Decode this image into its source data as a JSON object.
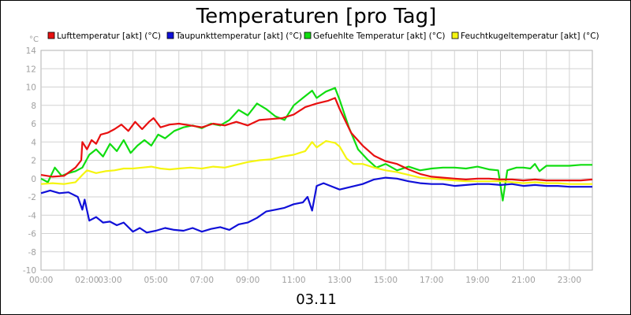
{
  "chart_data": {
    "type": "line",
    "title": "Temperaturen [pro Tag]",
    "y_unit": "°C",
    "date_label": "03.11",
    "xlim_hours": [
      0,
      24
    ],
    "ylim": [
      -10,
      14
    ],
    "y_ticks": [
      14,
      12,
      10,
      8,
      6,
      4,
      2,
      0,
      -2,
      -4,
      -6,
      -8,
      -10
    ],
    "x_ticks": [
      {
        "hour": 0,
        "label": "00:00"
      },
      {
        "hour": 2,
        "label": "02:00"
      },
      {
        "hour": 3,
        "label": "03:00"
      },
      {
        "hour": 5,
        "label": "05:00"
      },
      {
        "hour": 7,
        "label": "07:00"
      },
      {
        "hour": 9,
        "label": "09:00"
      },
      {
        "hour": 11,
        "label": "11:00"
      },
      {
        "hour": 13,
        "label": "13:00"
      },
      {
        "hour": 15,
        "label": "15:00"
      },
      {
        "hour": 17,
        "label": "17:00"
      },
      {
        "hour": 19,
        "label": "19:00"
      },
      {
        "hour": 21,
        "label": "21:00"
      },
      {
        "hour": 23,
        "label": "23:00"
      }
    ],
    "grid": true,
    "legend_position": "top",
    "series": [
      {
        "name": "Lufttemperatur [akt] (°C)",
        "color": "#e81010",
        "points": [
          [
            0,
            0.4
          ],
          [
            0.5,
            0.2
          ],
          [
            1,
            0.3
          ],
          [
            1.5,
            1.2
          ],
          [
            1.75,
            2
          ],
          [
            1.8,
            4
          ],
          [
            2.0,
            3.2
          ],
          [
            2.2,
            4.2
          ],
          [
            2.4,
            3.8
          ],
          [
            2.6,
            4.8
          ],
          [
            2.9,
            5.0
          ],
          [
            3.2,
            5.4
          ],
          [
            3.5,
            5.9
          ],
          [
            3.8,
            5.2
          ],
          [
            4.1,
            6.2
          ],
          [
            4.4,
            5.4
          ],
          [
            4.7,
            6.2
          ],
          [
            4.9,
            6.6
          ],
          [
            5.2,
            5.6
          ],
          [
            5.6,
            5.9
          ],
          [
            6,
            6.0
          ],
          [
            6.5,
            5.8
          ],
          [
            7,
            5.6
          ],
          [
            7.5,
            6.0
          ],
          [
            8,
            5.8
          ],
          [
            8.5,
            6.2
          ],
          [
            9,
            5.8
          ],
          [
            9.5,
            6.4
          ],
          [
            10,
            6.5
          ],
          [
            10.5,
            6.6
          ],
          [
            11,
            7.0
          ],
          [
            11.5,
            7.8
          ],
          [
            12,
            8.2
          ],
          [
            12.5,
            8.5
          ],
          [
            12.8,
            8.8
          ],
          [
            13,
            7.6
          ],
          [
            13.5,
            5.0
          ],
          [
            14,
            3.6
          ],
          [
            14.5,
            2.5
          ],
          [
            15,
            1.9
          ],
          [
            15.5,
            1.6
          ],
          [
            16,
            1.0
          ],
          [
            16.5,
            0.5
          ],
          [
            17,
            0.2
          ],
          [
            17.5,
            0.1
          ],
          [
            18,
            0.0
          ],
          [
            18.5,
            -0.1
          ],
          [
            19,
            0.0
          ],
          [
            19.5,
            0.0
          ],
          [
            20,
            -0.1
          ],
          [
            20.5,
            -0.1
          ],
          [
            21,
            -0.2
          ],
          [
            21.5,
            -0.1
          ],
          [
            22,
            -0.2
          ],
          [
            22.5,
            -0.2
          ],
          [
            23,
            -0.2
          ],
          [
            23.5,
            -0.2
          ],
          [
            24,
            -0.1
          ]
        ]
      },
      {
        "name": "Taupunkttemperatur [akt] (°C)",
        "color": "#1010d8",
        "points": [
          [
            0,
            -1.6
          ],
          [
            0.4,
            -1.3
          ],
          [
            0.8,
            -1.6
          ],
          [
            1.2,
            -1.5
          ],
          [
            1.6,
            -2.0
          ],
          [
            1.8,
            -3.4
          ],
          [
            1.9,
            -2.3
          ],
          [
            2.1,
            -4.6
          ],
          [
            2.4,
            -4.2
          ],
          [
            2.7,
            -4.8
          ],
          [
            3.0,
            -4.7
          ],
          [
            3.3,
            -5.1
          ],
          [
            3.6,
            -4.8
          ],
          [
            4.0,
            -5.8
          ],
          [
            4.3,
            -5.4
          ],
          [
            4.6,
            -5.9
          ],
          [
            5.0,
            -5.7
          ],
          [
            5.4,
            -5.4
          ],
          [
            5.8,
            -5.6
          ],
          [
            6.2,
            -5.7
          ],
          [
            6.6,
            -5.4
          ],
          [
            7.0,
            -5.8
          ],
          [
            7.4,
            -5.5
          ],
          [
            7.8,
            -5.3
          ],
          [
            8.2,
            -5.6
          ],
          [
            8.6,
            -5.0
          ],
          [
            9.0,
            -4.8
          ],
          [
            9.4,
            -4.3
          ],
          [
            9.8,
            -3.6
          ],
          [
            10.2,
            -3.4
          ],
          [
            10.6,
            -3.2
          ],
          [
            11.0,
            -2.8
          ],
          [
            11.4,
            -2.6
          ],
          [
            11.6,
            -2.0
          ],
          [
            11.8,
            -3.5
          ],
          [
            12.0,
            -0.8
          ],
          [
            12.3,
            -0.5
          ],
          [
            12.6,
            -0.8
          ],
          [
            13.0,
            -1.2
          ],
          [
            13.5,
            -0.9
          ],
          [
            14.0,
            -0.6
          ],
          [
            14.5,
            -0.1
          ],
          [
            15.0,
            0.1
          ],
          [
            15.5,
            0.0
          ],
          [
            16.0,
            -0.3
          ],
          [
            16.5,
            -0.5
          ],
          [
            17.0,
            -0.6
          ],
          [
            17.5,
            -0.6
          ],
          [
            18.0,
            -0.8
          ],
          [
            18.5,
            -0.7
          ],
          [
            19.0,
            -0.6
          ],
          [
            19.5,
            -0.6
          ],
          [
            20.0,
            -0.7
          ],
          [
            20.5,
            -0.6
          ],
          [
            21.0,
            -0.8
          ],
          [
            21.5,
            -0.7
          ],
          [
            22.0,
            -0.8
          ],
          [
            22.5,
            -0.8
          ],
          [
            23.0,
            -0.9
          ],
          [
            23.5,
            -0.9
          ],
          [
            24,
            -0.9
          ]
        ]
      },
      {
        "name": "Gefuehlte Temperatur [akt] (°C)",
        "color": "#10dd10",
        "points": [
          [
            0,
            0.0
          ],
          [
            0.3,
            -0.4
          ],
          [
            0.6,
            1.2
          ],
          [
            0.9,
            0.3
          ],
          [
            1.2,
            0.6
          ],
          [
            1.5,
            0.8
          ],
          [
            1.8,
            1.2
          ],
          [
            2.1,
            2.6
          ],
          [
            2.4,
            3.2
          ],
          [
            2.7,
            2.4
          ],
          [
            3.0,
            3.8
          ],
          [
            3.3,
            3.0
          ],
          [
            3.6,
            4.2
          ],
          [
            3.9,
            2.8
          ],
          [
            4.2,
            3.6
          ],
          [
            4.5,
            4.2
          ],
          [
            4.8,
            3.6
          ],
          [
            5.1,
            4.8
          ],
          [
            5.4,
            4.4
          ],
          [
            5.8,
            5.2
          ],
          [
            6.2,
            5.6
          ],
          [
            6.6,
            5.8
          ],
          [
            7.0,
            5.5
          ],
          [
            7.4,
            6.0
          ],
          [
            7.8,
            5.8
          ],
          [
            8.2,
            6.4
          ],
          [
            8.6,
            7.5
          ],
          [
            9.0,
            6.9
          ],
          [
            9.4,
            8.2
          ],
          [
            9.8,
            7.6
          ],
          [
            10.2,
            6.8
          ],
          [
            10.6,
            6.4
          ],
          [
            11.0,
            8.0
          ],
          [
            11.4,
            8.8
          ],
          [
            11.8,
            9.6
          ],
          [
            12.0,
            8.8
          ],
          [
            12.4,
            9.5
          ],
          [
            12.8,
            9.9
          ],
          [
            13.0,
            8.6
          ],
          [
            13.4,
            5.6
          ],
          [
            13.8,
            3.2
          ],
          [
            14.2,
            2.1
          ],
          [
            14.6,
            1.2
          ],
          [
            15.0,
            1.6
          ],
          [
            15.5,
            0.9
          ],
          [
            16.0,
            1.3
          ],
          [
            16.5,
            0.9
          ],
          [
            17.0,
            1.1
          ],
          [
            17.5,
            1.2
          ],
          [
            18.0,
            1.2
          ],
          [
            18.5,
            1.1
          ],
          [
            19.0,
            1.3
          ],
          [
            19.5,
            1.0
          ],
          [
            19.9,
            0.9
          ],
          [
            20.1,
            -2.4
          ],
          [
            20.3,
            0.9
          ],
          [
            20.7,
            1.2
          ],
          [
            21.0,
            1.2
          ],
          [
            21.3,
            1.1
          ],
          [
            21.5,
            1.6
          ],
          [
            21.7,
            0.8
          ],
          [
            22.0,
            1.4
          ],
          [
            22.5,
            1.4
          ],
          [
            23.0,
            1.4
          ],
          [
            23.5,
            1.5
          ],
          [
            24,
            1.5
          ]
        ]
      },
      {
        "name": "Feuchtkugeltemperatur [akt] (°C)",
        "color": "#f5f510",
        "points": [
          [
            0,
            -0.6
          ],
          [
            0.5,
            -0.5
          ],
          [
            1.0,
            -0.6
          ],
          [
            1.5,
            -0.4
          ],
          [
            1.8,
            0.4
          ],
          [
            2.0,
            0.9
          ],
          [
            2.4,
            0.6
          ],
          [
            2.8,
            0.8
          ],
          [
            3.2,
            0.9
          ],
          [
            3.6,
            1.1
          ],
          [
            4.0,
            1.1
          ],
          [
            4.4,
            1.2
          ],
          [
            4.8,
            1.3
          ],
          [
            5.2,
            1.1
          ],
          [
            5.6,
            1.0
          ],
          [
            6.0,
            1.1
          ],
          [
            6.5,
            1.2
          ],
          [
            7.0,
            1.1
          ],
          [
            7.5,
            1.3
          ],
          [
            8.0,
            1.2
          ],
          [
            8.5,
            1.5
          ],
          [
            9.0,
            1.8
          ],
          [
            9.5,
            2.0
          ],
          [
            10.0,
            2.1
          ],
          [
            10.5,
            2.4
          ],
          [
            11.0,
            2.6
          ],
          [
            11.5,
            3.0
          ],
          [
            11.8,
            4.0
          ],
          [
            12.0,
            3.4
          ],
          [
            12.4,
            4.1
          ],
          [
            12.8,
            3.9
          ],
          [
            13.0,
            3.5
          ],
          [
            13.3,
            2.2
          ],
          [
            13.6,
            1.6
          ],
          [
            14.0,
            1.6
          ],
          [
            14.5,
            1.2
          ],
          [
            15.0,
            0.9
          ],
          [
            15.5,
            0.7
          ],
          [
            16.0,
            0.4
          ],
          [
            16.5,
            0.1
          ],
          [
            17.0,
            0.0
          ],
          [
            17.5,
            -0.1
          ],
          [
            18.0,
            -0.2
          ],
          [
            18.5,
            -0.3
          ],
          [
            19.0,
            -0.3
          ],
          [
            19.5,
            -0.3
          ],
          [
            20.0,
            -0.3
          ],
          [
            20.5,
            -0.4
          ],
          [
            21.0,
            -0.5
          ],
          [
            21.5,
            -0.4
          ],
          [
            22.0,
            -0.5
          ],
          [
            22.5,
            -0.5
          ],
          [
            23.0,
            -0.6
          ],
          [
            23.5,
            -0.6
          ],
          [
            24,
            -0.6
          ]
        ]
      }
    ]
  }
}
